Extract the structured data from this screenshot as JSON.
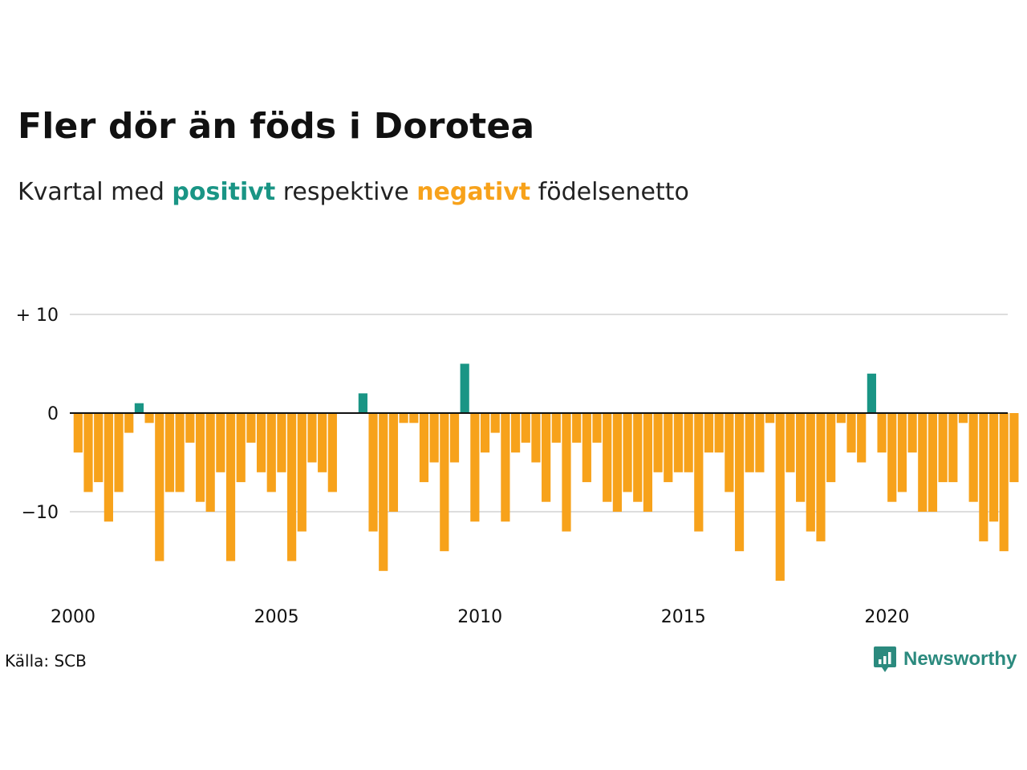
{
  "header": {
    "title": "Fler dör än föds i Dorotea",
    "subtitle_prefix": "Kvartal med ",
    "subtitle_positive": "positivt",
    "subtitle_middle": " respektive ",
    "subtitle_negative": "negativt",
    "subtitle_suffix": " födelsenetto"
  },
  "footer": {
    "source": "Källa: SCB",
    "brand": "Newsworthy"
  },
  "colors": {
    "positive": "#1a9585",
    "negative": "#f7a21b",
    "grid": "#dddddd",
    "axis": "#111111",
    "brand": "#2b8a7e"
  },
  "chart_data": {
    "type": "bar",
    "x_start": "2000 Q1",
    "x_step": "quarter",
    "ylim": [
      -18,
      11
    ],
    "yticks": [
      10,
      0,
      -10
    ],
    "ytick_labels": [
      "+ 10",
      "0",
      "−10"
    ],
    "xtick_labels": [
      "2000",
      "2005",
      "2010",
      "2015",
      "2020"
    ],
    "grid": true,
    "values": [
      -4,
      -8,
      -7,
      -11,
      -8,
      -2,
      1,
      -1,
      -15,
      -8,
      -8,
      -3,
      -9,
      -10,
      -6,
      -15,
      -7,
      -3,
      -6,
      -8,
      -6,
      -15,
      -12,
      -5,
      -6,
      -8,
      0,
      0,
      2,
      -12,
      -16,
      -10,
      -1,
      -1,
      -7,
      -5,
      -14,
      -5,
      5,
      -11,
      -4,
      -2,
      -11,
      -4,
      -3,
      -5,
      -9,
      -3,
      -12,
      -3,
      -7,
      -3,
      -9,
      -10,
      -8,
      -9,
      -10,
      -6,
      -7,
      -6,
      -6,
      -12,
      -4,
      -4,
      -8,
      -14,
      -6,
      -6,
      -1,
      -17,
      -6,
      -9,
      -12,
      -13,
      -7,
      -1,
      -4,
      -5,
      4,
      -4,
      -9,
      -8,
      -4,
      -10,
      -10,
      -7,
      -7,
      -1,
      -9,
      -13,
      -11,
      -14,
      -7
    ]
  }
}
